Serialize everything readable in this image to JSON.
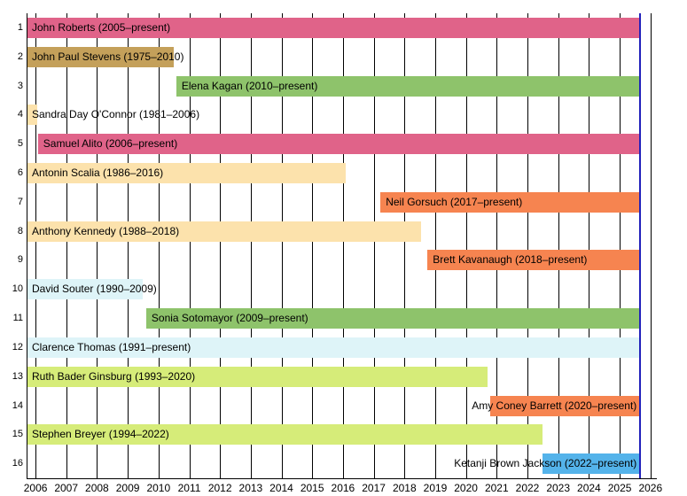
{
  "chart_data": {
    "type": "gantt",
    "title": "",
    "xlabel": "",
    "ylabel": "",
    "grid": true,
    "legend": false,
    "xlim": [
      2005.71,
      2026.18
    ],
    "x_ticks": [
      2006,
      2007,
      2008,
      2009,
      2010,
      2011,
      2012,
      2013,
      2014,
      2015,
      2016,
      2017,
      2018,
      2019,
      2020,
      2021,
      2022,
      2023,
      2024,
      2025,
      2026
    ],
    "today_year": 2025.64,
    "today_line_color": "#2121bb",
    "axis_color": "#000000",
    "colors": {
      "pink": "#e06389",
      "tan": "#c4a05a",
      "green": "#8ec36b",
      "peach": "#fce2ac",
      "orange": "#f68450",
      "cyan": "#def4f8",
      "yellowgreen": "#d6ec79",
      "blue": "#54b3ea"
    },
    "rows": [
      {
        "num": "1",
        "label": "John Roberts (2005–present)",
        "start": 2005.71,
        "end": "present",
        "color": "pink",
        "label_align": "left"
      },
      {
        "num": "2",
        "label": "John Paul Stevens (1975–2010)",
        "start": 2005.71,
        "end": 2010.49,
        "color": "tan",
        "label_align": "left"
      },
      {
        "num": "3",
        "label": "Elena Kagan (2010–present)",
        "start": 2010.58,
        "end": "present",
        "color": "green",
        "label_align": "left"
      },
      {
        "num": "4",
        "label": "Sandra Day O'Connor (1981–2006)",
        "start": 2005.71,
        "end": 2006.06,
        "color": "peach",
        "label_align": "left"
      },
      {
        "num": "5",
        "label": "Samuel Alito (2006–present)",
        "start": 2006.08,
        "end": "present",
        "color": "pink",
        "label_align": "left"
      },
      {
        "num": "6",
        "label": "Antonin Scalia (1986–2016)",
        "start": 2005.71,
        "end": 2016.1,
        "color": "peach",
        "label_align": "left"
      },
      {
        "num": "7",
        "label": "Neil Gorsuch (2017–present)",
        "start": 2017.22,
        "end": "present",
        "color": "orange",
        "label_align": "left"
      },
      {
        "num": "8",
        "label": "Anthony Kennedy (1988–2018)",
        "start": 2005.71,
        "end": 2018.55,
        "color": "peach",
        "label_align": "left"
      },
      {
        "num": "9",
        "label": "Brett Kavanaugh (2018–present)",
        "start": 2018.75,
        "end": "present",
        "color": "orange",
        "label_align": "left"
      },
      {
        "num": "10",
        "label": "David Souter (1990–2009)",
        "start": 2005.71,
        "end": 2009.49,
        "color": "cyan",
        "label_align": "left"
      },
      {
        "num": "11",
        "label": "Sonia Sotomayor (2009–present)",
        "start": 2009.6,
        "end": "present",
        "color": "green",
        "label_align": "left"
      },
      {
        "num": "12",
        "label": "Clarence Thomas (1991–present)",
        "start": 2005.71,
        "end": "present",
        "color": "cyan",
        "label_align": "left"
      },
      {
        "num": "13",
        "label": "Ruth Bader Ginsburg (1993–2020)",
        "start": 2005.71,
        "end": 2020.71,
        "color": "yellowgreen",
        "label_align": "left"
      },
      {
        "num": "14",
        "label": "Amy Coney Barrett (2020–present)",
        "start": 2020.8,
        "end": "present",
        "color": "orange",
        "label_align": "right"
      },
      {
        "num": "15",
        "label": "Stephen Breyer (1994–2022)",
        "start": 2005.71,
        "end": 2022.49,
        "color": "yellowgreen",
        "label_align": "left"
      },
      {
        "num": "16",
        "label": "Ketanji Brown Jackson (2022–present)",
        "start": 2022.49,
        "end": "present",
        "color": "blue",
        "label_align": "right"
      }
    ]
  }
}
